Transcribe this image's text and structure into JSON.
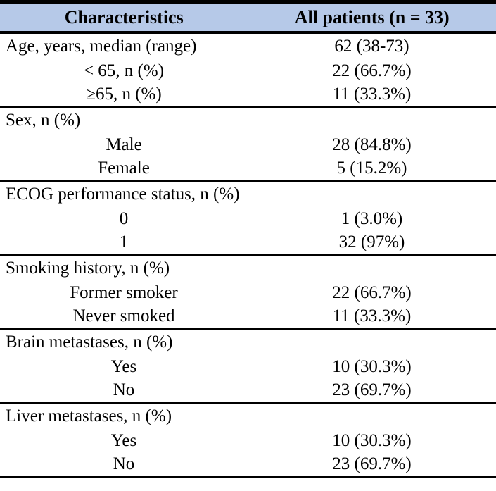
{
  "table": {
    "header": {
      "col1": "Characteristics",
      "col2": "All patients (n = 33)"
    },
    "header_bg": "#b6c9e8",
    "border_color": "#000000",
    "rows": [
      {
        "label": "Age, years, median (range)",
        "value": "62 (38-73)",
        "style": "leftlabel",
        "divider": false
      },
      {
        "label": "< 65, n (%)",
        "value": "22 (66.7%)",
        "style": "sublabel",
        "divider": false
      },
      {
        "label": "≥65, n (%)",
        "value": "11 (33.3%)",
        "style": "sublabel",
        "divider": true
      },
      {
        "label": "Sex, n (%)",
        "value": "",
        "style": "section",
        "divider": false
      },
      {
        "label": "Male",
        "value": "28 (84.8%)",
        "style": "sublabel",
        "divider": false
      },
      {
        "label": "Female",
        "value": "5 (15.2%)",
        "style": "sublabel",
        "divider": true
      },
      {
        "label": "ECOG performance status, n (%)",
        "value": "",
        "style": "section",
        "divider": false
      },
      {
        "label": "0",
        "value": "1 (3.0%)",
        "style": "sublabel",
        "divider": false
      },
      {
        "label": "1",
        "value": "32 (97%)",
        "style": "sublabel",
        "divider": true
      },
      {
        "label": "Smoking history, n (%)",
        "value": "",
        "style": "section",
        "divider": false
      },
      {
        "label": "Former smoker",
        "value": "22 (66.7%)",
        "style": "sublabel",
        "divider": false
      },
      {
        "label": "Never smoked",
        "value": "11 (33.3%)",
        "style": "sublabel",
        "divider": true
      },
      {
        "label": "Brain metastases, n (%)",
        "value": "",
        "style": "section",
        "divider": false
      },
      {
        "label": "Yes",
        "value": "10 (30.3%)",
        "style": "sublabel",
        "divider": false
      },
      {
        "label": "No",
        "value": "23 (69.7%)",
        "style": "sublabel",
        "divider": true
      },
      {
        "label": "Liver metastases, n (%)",
        "value": "",
        "style": "section",
        "divider": false
      },
      {
        "label": "Yes",
        "value": "10 (30.3%)",
        "style": "sublabel",
        "divider": false
      },
      {
        "label": "No",
        "value": "23 (69.7%)",
        "style": "sublabel",
        "divider": true
      }
    ]
  }
}
